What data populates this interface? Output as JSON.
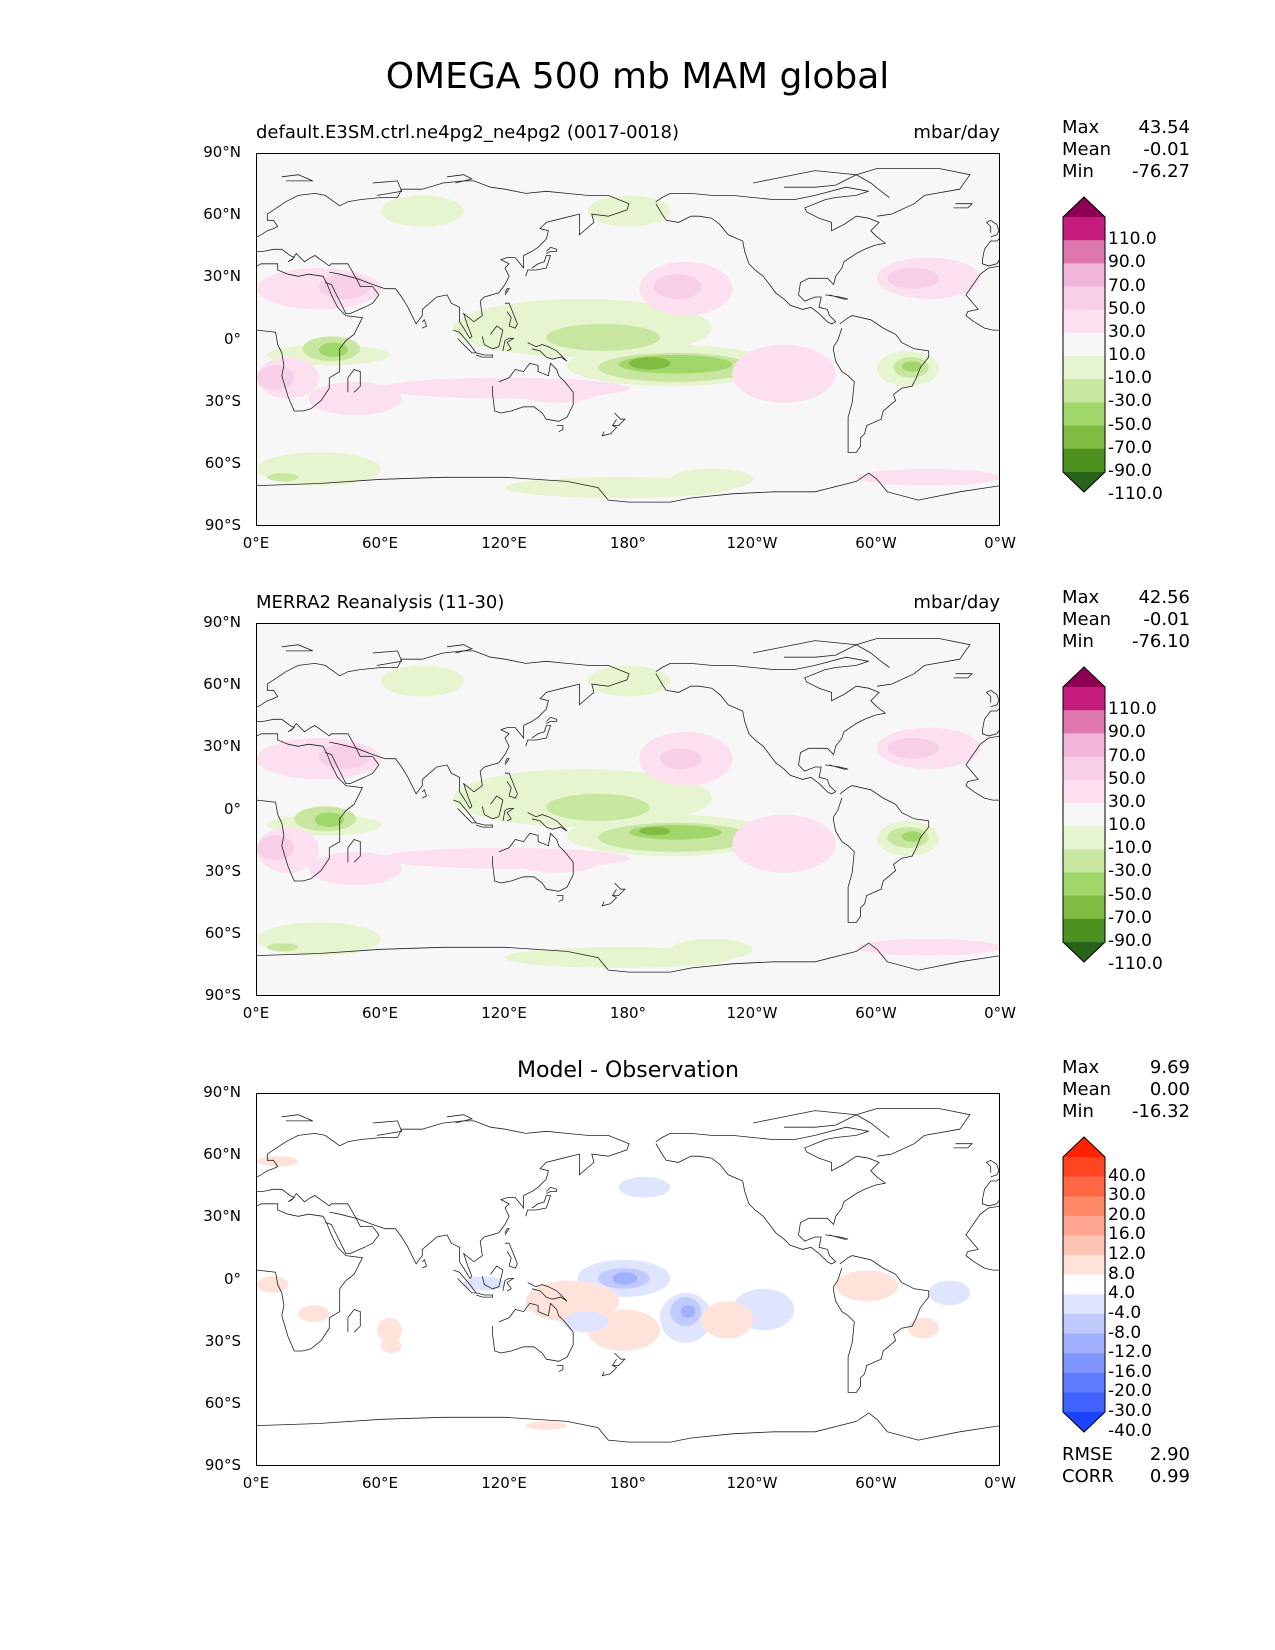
{
  "title": "OMEGA 500 mb MAM global",
  "lat_labels": [
    "90°N",
    "60°N",
    "30°N",
    "0°",
    "30°S",
    "60°S",
    "90°S"
  ],
  "lon_labels": [
    "0°E",
    "60°E",
    "120°E",
    "180°",
    "120°W",
    "60°W",
    "0°W"
  ],
  "panels": [
    {
      "id": "model",
      "title_left": "default.E3SM.ctrl.ne4pg2_ne4pg2 (0017-0018)",
      "title_right": "mbar/day",
      "title_center": "",
      "stats": [
        {
          "label": "Max",
          "value": "43.54"
        },
        {
          "label": "Mean",
          "value": "-0.01"
        },
        {
          "label": "Min",
          "value": "-76.27"
        }
      ],
      "extra_stats": [],
      "colorbar": {
        "labels": [
          "110.0",
          "90.0",
          "70.0",
          "50.0",
          "30.0",
          "10.0",
          "-10.0",
          "-30.0",
          "-50.0",
          "-70.0",
          "-90.0",
          "-110.0"
        ],
        "colors": [
          "#8e0152",
          "#c51b7d",
          "#de77ae",
          "#f1b6da",
          "#f7cfe6",
          "#fde0ef",
          "#f7f7f7",
          "#e6f5d0",
          "#c9e6a0",
          "#a1d76a",
          "#7fbc41",
          "#4d9221",
          "#276419"
        ]
      }
    },
    {
      "id": "obs",
      "title_left": "MERRA2 Reanalysis (11-30)",
      "title_right": "mbar/day",
      "title_center": "",
      "stats": [
        {
          "label": "Max",
          "value": "42.56"
        },
        {
          "label": "Mean",
          "value": "-0.01"
        },
        {
          "label": "Min",
          "value": "-76.10"
        }
      ],
      "extra_stats": [],
      "colorbar": {
        "labels": [
          "110.0",
          "90.0",
          "70.0",
          "50.0",
          "30.0",
          "10.0",
          "-10.0",
          "-30.0",
          "-50.0",
          "-70.0",
          "-90.0",
          "-110.0"
        ],
        "colors": [
          "#8e0152",
          "#c51b7d",
          "#de77ae",
          "#f1b6da",
          "#f7cfe6",
          "#fde0ef",
          "#f7f7f7",
          "#e6f5d0",
          "#c9e6a0",
          "#a1d76a",
          "#7fbc41",
          "#4d9221",
          "#276419"
        ]
      }
    },
    {
      "id": "diff",
      "title_left": "",
      "title_right": "",
      "title_center": "Model - Observation",
      "stats": [
        {
          "label": "Max",
          "value": "9.69"
        },
        {
          "label": "Mean",
          "value": "0.00"
        },
        {
          "label": "Min",
          "value": "-16.32"
        }
      ],
      "extra_stats": [
        {
          "label": "RMSE",
          "value": "2.90"
        },
        {
          "label": "CORR",
          "value": "0.99"
        }
      ],
      "colorbar": {
        "labels": [
          "40.0",
          "30.0",
          "20.0",
          "16.0",
          "12.0",
          "8.0",
          "4.0",
          "-4.0",
          "-8.0",
          "-12.0",
          "-16.0",
          "-20.0",
          "-30.0",
          "-40.0"
        ],
        "colors": [
          "#ff2200",
          "#ff4422",
          "#ff6644",
          "#ff8866",
          "#ffa590",
          "#ffc4b4",
          "#ffe3da",
          "#ffffff",
          "#dfe4ff",
          "#c0caff",
          "#a0b0ff",
          "#8096ff",
          "#607cff",
          "#4062ff",
          "#1a44ff"
        ]
      }
    }
  ]
}
